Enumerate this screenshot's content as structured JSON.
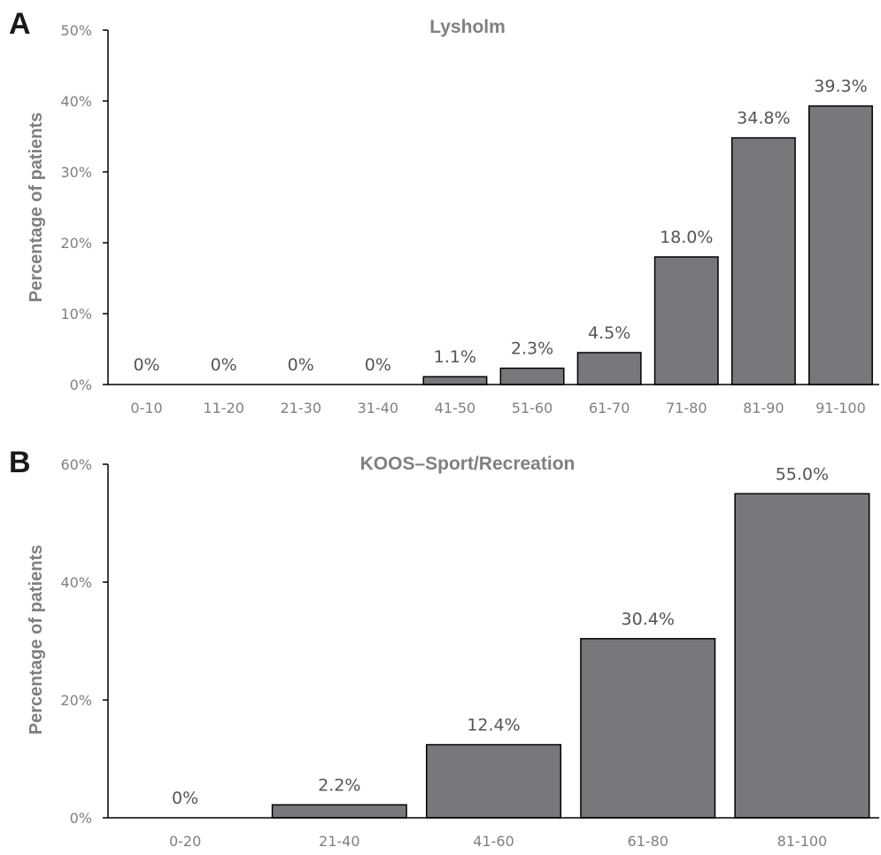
{
  "chart_data": [
    {
      "panel": "A",
      "type": "bar",
      "title": "Lysholm",
      "ylabel": "Percentage of patients",
      "xlabel": "",
      "categories": [
        "0-10",
        "11-20",
        "21-30",
        "31-40",
        "41-50",
        "51-60",
        "61-70",
        "71-80",
        "81-90",
        "91-100"
      ],
      "values": [
        0,
        0,
        0,
        0,
        1.1,
        2.3,
        4.5,
        18.0,
        34.8,
        39.3
      ],
      "value_labels": [
        "0%",
        "0%",
        "0%",
        "0%",
        "1.1%",
        "2.3%",
        "4.5%",
        "18.0%",
        "34.8%",
        "39.3%"
      ],
      "ylim": [
        0,
        50
      ],
      "yticks": [
        0,
        10,
        20,
        30,
        40,
        50
      ],
      "ytick_labels": [
        "0%",
        "10%",
        "20%",
        "30%",
        "40%",
        "50%"
      ],
      "grid": false,
      "bar_color": "#77787b"
    },
    {
      "panel": "B",
      "type": "bar",
      "title": "KOOS–Sport/Recreation",
      "ylabel": "Percentage of patients",
      "xlabel": "",
      "categories": [
        "0-20",
        "21-40",
        "41-60",
        "61-80",
        "81-100"
      ],
      "values": [
        0,
        2.2,
        12.4,
        30.4,
        55.0
      ],
      "value_labels": [
        "0%",
        "2.2%",
        "12.4%",
        "30.4%",
        "55.0%"
      ],
      "ylim": [
        0,
        60
      ],
      "yticks": [
        0,
        20,
        40,
        60
      ],
      "ytick_labels": [
        "0%",
        "20%",
        "40%",
        "60%"
      ],
      "grid": false,
      "bar_color": "#77787b"
    }
  ]
}
